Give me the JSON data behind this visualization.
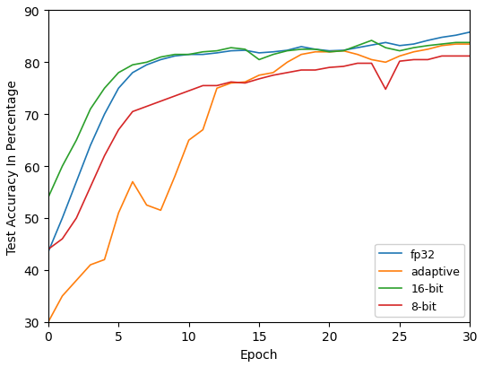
{
  "title": "",
  "xlabel": "Epoch",
  "ylabel": "Test Accuracy In Percentage",
  "xlim": [
    0,
    30
  ],
  "ylim": [
    30,
    90
  ],
  "yticks": [
    30,
    40,
    50,
    60,
    70,
    80,
    90
  ],
  "xticks": [
    0,
    5,
    10,
    15,
    20,
    25,
    30
  ],
  "legend_labels": [
    "fp32",
    "adaptive",
    "16-bit",
    "8-bit"
  ],
  "legend_colors": [
    "#1f77b4",
    "#ff7f0e",
    "#2ca02c",
    "#d62728"
  ],
  "legend_loc": "lower right",
  "fp32": [
    43.5,
    50,
    57,
    64,
    70,
    75,
    78,
    79.5,
    80.5,
    81.2,
    81.5,
    81.5,
    81.8,
    82.2,
    82.3,
    81.8,
    82.0,
    82.3,
    83.0,
    82.5,
    82.2,
    82.3,
    82.8,
    83.3,
    83.8,
    83.2,
    83.5,
    84.2,
    84.8,
    85.2,
    85.8
  ],
  "adaptive": [
    30,
    35,
    38,
    41,
    42,
    51,
    57,
    52.5,
    51.5,
    58,
    65,
    67,
    75,
    76,
    76.2,
    77.5,
    78,
    80,
    81.5,
    82,
    82,
    82.2,
    81.5,
    80.5,
    80,
    81.2,
    82,
    82.5,
    83.2,
    83.5,
    83.5
  ],
  "16bit": [
    54,
    60,
    65,
    71,
    75,
    78,
    79.5,
    80,
    81,
    81.5,
    81.5,
    82,
    82.2,
    82.8,
    82.5,
    80.5,
    81.5,
    82.2,
    82.5,
    82.5,
    82.0,
    82.2,
    83.2,
    84.2,
    82.8,
    82.2,
    82.8,
    83.2,
    83.5,
    83.8,
    83.8
  ],
  "8bit": [
    44,
    46,
    50,
    56,
    62,
    67,
    70.5,
    71.5,
    72.5,
    73.5,
    74.5,
    75.5,
    75.5,
    76.2,
    76.0,
    76.8,
    77.5,
    78.0,
    78.5,
    78.5,
    79.0,
    79.2,
    79.8,
    79.8,
    74.8,
    80.2,
    80.5,
    80.5,
    81.2,
    81.2,
    81.2
  ]
}
